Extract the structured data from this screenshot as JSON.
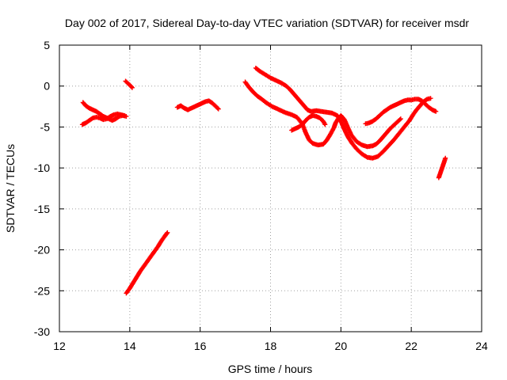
{
  "chart_data": {
    "type": "scatter",
    "title": "Day 002 of 2017, Sidereal Day-to-day VTEC variation (SDTVAR) for receiver msdr",
    "xlabel": "GPS time / hours",
    "ylabel": "SDTVAR / TECUs",
    "xlim": [
      12,
      24
    ],
    "ylim": [
      -30,
      5
    ],
    "xticks": [
      "12",
      "14",
      "16",
      "18",
      "20",
      "22",
      "24"
    ],
    "yticks": [
      "5",
      "0",
      "-5",
      "-10",
      "-15",
      "-20",
      "-25",
      "-30"
    ],
    "grid": true,
    "marker": "plus",
    "series_color": "#ff0000",
    "segments": [
      {
        "name": "arc-a",
        "points": [
          [
            12.67,
            -2.0
          ],
          [
            12.75,
            -2.4
          ],
          [
            12.85,
            -2.7
          ],
          [
            12.95,
            -2.9
          ],
          [
            13.05,
            -3.1
          ],
          [
            13.15,
            -3.4
          ],
          [
            13.25,
            -3.7
          ],
          [
            13.35,
            -3.9
          ],
          [
            13.5,
            -4.2
          ],
          [
            13.6,
            -4.0
          ],
          [
            13.7,
            -3.7
          ],
          [
            13.8,
            -3.6
          ],
          [
            13.9,
            -3.7
          ]
        ]
      },
      {
        "name": "arc-b",
        "points": [
          [
            12.65,
            -4.7
          ],
          [
            12.75,
            -4.5
          ],
          [
            12.85,
            -4.2
          ],
          [
            12.95,
            -3.9
          ],
          [
            13.05,
            -3.8
          ],
          [
            13.15,
            -3.9
          ],
          [
            13.25,
            -4.1
          ],
          [
            13.35,
            -4.0
          ],
          [
            13.45,
            -3.7
          ],
          [
            13.55,
            -3.5
          ],
          [
            13.65,
            -3.4
          ],
          [
            13.75,
            -3.5
          ],
          [
            13.85,
            -3.6
          ]
        ]
      },
      {
        "name": "arc-c",
        "points": [
          [
            13.88,
            0.6
          ],
          [
            13.93,
            0.4
          ],
          [
            13.98,
            0.2
          ],
          [
            14.03,
            0.0
          ],
          [
            14.07,
            -0.2
          ]
        ]
      },
      {
        "name": "arc-d",
        "points": [
          [
            13.9,
            -25.3
          ],
          [
            14.0,
            -24.7
          ],
          [
            14.1,
            -24.0
          ],
          [
            14.2,
            -23.3
          ],
          [
            14.3,
            -22.6
          ],
          [
            14.4,
            -22.0
          ],
          [
            14.5,
            -21.4
          ],
          [
            14.6,
            -20.8
          ],
          [
            14.7,
            -20.2
          ],
          [
            14.8,
            -19.6
          ],
          [
            14.9,
            -18.9
          ],
          [
            15.0,
            -18.3
          ],
          [
            15.07,
            -17.9
          ]
        ]
      },
      {
        "name": "arc-e",
        "points": [
          [
            15.35,
            -2.6
          ],
          [
            15.45,
            -2.4
          ],
          [
            15.55,
            -2.7
          ],
          [
            15.65,
            -2.9
          ],
          [
            15.75,
            -2.7
          ],
          [
            15.85,
            -2.5
          ],
          [
            15.95,
            -2.3
          ],
          [
            16.05,
            -2.1
          ],
          [
            16.15,
            -1.9
          ],
          [
            16.25,
            -1.8
          ],
          [
            16.35,
            -2.1
          ],
          [
            16.45,
            -2.5
          ],
          [
            16.52,
            -2.8
          ]
        ]
      },
      {
        "name": "arc-f",
        "points": [
          [
            17.28,
            0.5
          ],
          [
            17.38,
            -0.1
          ],
          [
            17.5,
            -0.7
          ],
          [
            17.62,
            -1.2
          ],
          [
            17.75,
            -1.6
          ],
          [
            17.9,
            -2.1
          ],
          [
            18.05,
            -2.5
          ],
          [
            18.2,
            -2.8
          ],
          [
            18.4,
            -3.2
          ],
          [
            18.6,
            -3.5
          ],
          [
            18.75,
            -3.8
          ],
          [
            18.9,
            -4.6
          ],
          [
            19.0,
            -5.7
          ],
          [
            19.1,
            -6.6
          ],
          [
            19.2,
            -7.0
          ],
          [
            19.35,
            -7.2
          ],
          [
            19.5,
            -7.1
          ],
          [
            19.6,
            -6.6
          ],
          [
            19.7,
            -5.9
          ],
          [
            19.8,
            -5.1
          ],
          [
            19.85,
            -4.5
          ],
          [
            19.92,
            -4.0
          ],
          [
            20.0,
            -3.6
          ],
          [
            20.1,
            -4.1
          ],
          [
            20.2,
            -5.1
          ],
          [
            20.3,
            -6.0
          ],
          [
            20.45,
            -6.8
          ],
          [
            20.6,
            -7.2
          ],
          [
            20.75,
            -7.4
          ],
          [
            20.9,
            -7.3
          ],
          [
            21.0,
            -7.1
          ],
          [
            21.1,
            -6.7
          ],
          [
            21.2,
            -6.2
          ],
          [
            21.3,
            -5.7
          ],
          [
            21.4,
            -5.2
          ],
          [
            21.5,
            -4.8
          ],
          [
            21.6,
            -4.4
          ],
          [
            21.7,
            -4.0
          ]
        ]
      },
      {
        "name": "arc-g",
        "points": [
          [
            17.58,
            2.2
          ],
          [
            17.7,
            1.8
          ],
          [
            17.85,
            1.4
          ],
          [
            18.0,
            1.0
          ],
          [
            18.15,
            0.7
          ],
          [
            18.3,
            0.4
          ],
          [
            18.45,
            0.0
          ],
          [
            18.55,
            -0.4
          ],
          [
            18.65,
            -0.9
          ],
          [
            18.75,
            -1.4
          ],
          [
            18.85,
            -1.9
          ],
          [
            18.95,
            -2.4
          ],
          [
            19.05,
            -2.9
          ],
          [
            19.15,
            -3.1
          ],
          [
            19.3,
            -3.0
          ],
          [
            19.45,
            -3.1
          ],
          [
            19.6,
            -3.2
          ],
          [
            19.75,
            -3.3
          ],
          [
            19.9,
            -3.6
          ],
          [
            20.0,
            -4.3
          ],
          [
            20.1,
            -5.3
          ],
          [
            20.2,
            -6.2
          ],
          [
            20.32,
            -7.0
          ],
          [
            20.45,
            -7.7
          ],
          [
            20.6,
            -8.3
          ],
          [
            20.75,
            -8.7
          ],
          [
            20.9,
            -8.8
          ],
          [
            21.05,
            -8.6
          ],
          [
            21.2,
            -8.0
          ],
          [
            21.35,
            -7.3
          ],
          [
            21.5,
            -6.6
          ],
          [
            21.65,
            -5.8
          ],
          [
            21.8,
            -5.0
          ],
          [
            21.95,
            -4.2
          ],
          [
            22.05,
            -3.5
          ],
          [
            22.15,
            -2.9
          ],
          [
            22.25,
            -2.4
          ],
          [
            22.35,
            -1.9
          ],
          [
            22.45,
            -1.6
          ],
          [
            22.55,
            -1.5
          ]
        ]
      },
      {
        "name": "arc-h",
        "points": [
          [
            18.6,
            -5.4
          ],
          [
            18.7,
            -5.2
          ],
          [
            18.8,
            -5.0
          ],
          [
            18.9,
            -4.7
          ],
          [
            19.0,
            -4.2
          ],
          [
            19.1,
            -3.8
          ],
          [
            19.2,
            -3.6
          ],
          [
            19.3,
            -3.7
          ],
          [
            19.4,
            -3.9
          ],
          [
            19.5,
            -4.3
          ],
          [
            19.55,
            -4.7
          ]
        ]
      },
      {
        "name": "arc-i",
        "points": [
          [
            20.7,
            -4.6
          ],
          [
            20.8,
            -4.5
          ],
          [
            20.9,
            -4.3
          ],
          [
            21.0,
            -4.0
          ],
          [
            21.1,
            -3.6
          ],
          [
            21.2,
            -3.2
          ],
          [
            21.3,
            -2.9
          ],
          [
            21.4,
            -2.6
          ],
          [
            21.5,
            -2.4
          ],
          [
            21.6,
            -2.2
          ],
          [
            21.7,
            -2.0
          ],
          [
            21.8,
            -1.8
          ],
          [
            21.9,
            -1.7
          ],
          [
            22.0,
            -1.7
          ],
          [
            22.1,
            -1.6
          ],
          [
            22.2,
            -1.6
          ],
          [
            22.3,
            -1.8
          ],
          [
            22.4,
            -2.2
          ],
          [
            22.5,
            -2.6
          ],
          [
            22.6,
            -2.9
          ],
          [
            22.7,
            -3.1
          ]
        ]
      },
      {
        "name": "arc-j",
        "points": [
          [
            22.78,
            -11.2
          ],
          [
            22.82,
            -10.7
          ],
          [
            22.86,
            -10.2
          ],
          [
            22.9,
            -9.7
          ],
          [
            22.94,
            -9.2
          ],
          [
            22.97,
            -8.8
          ]
        ]
      }
    ]
  }
}
